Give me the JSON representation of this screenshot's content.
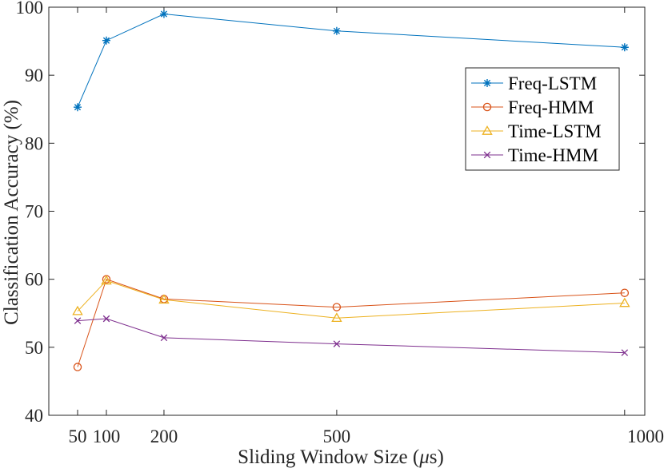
{
  "chart_data": {
    "type": "line",
    "xlabel": "Sliding Window Size (",
    "xlabel_mu": "μ",
    "xlabel_unit": "s)",
    "ylabel": "Classification Accuracy (%)",
    "x": [
      50,
      100,
      200,
      500,
      1000
    ],
    "xlim": [
      0,
      1035
    ],
    "ylim": [
      40,
      100
    ],
    "x_ticks": [
      50,
      100,
      200,
      500,
      1000
    ],
    "y_ticks": [
      40,
      50,
      60,
      70,
      80,
      90,
      100
    ],
    "grid": false,
    "legend_position": "upper-right",
    "series": [
      {
        "name": "Freq-LSTM",
        "color": "#0072BD",
        "marker": "asterisk",
        "values": [
          85.3,
          95.1,
          99.0,
          96.5,
          94.1
        ]
      },
      {
        "name": "Freq-HMM",
        "color": "#D95319",
        "marker": "circle",
        "values": [
          47.1,
          60.0,
          57.1,
          55.9,
          58.0
        ]
      },
      {
        "name": "Time-LSTM",
        "color": "#EDB120",
        "marker": "triangle",
        "values": [
          55.3,
          59.8,
          57.0,
          54.3,
          56.5
        ]
      },
      {
        "name": "Time-HMM",
        "color": "#7E2F8E",
        "marker": "x",
        "values": [
          53.9,
          54.2,
          51.4,
          50.5,
          49.2
        ]
      }
    ]
  }
}
